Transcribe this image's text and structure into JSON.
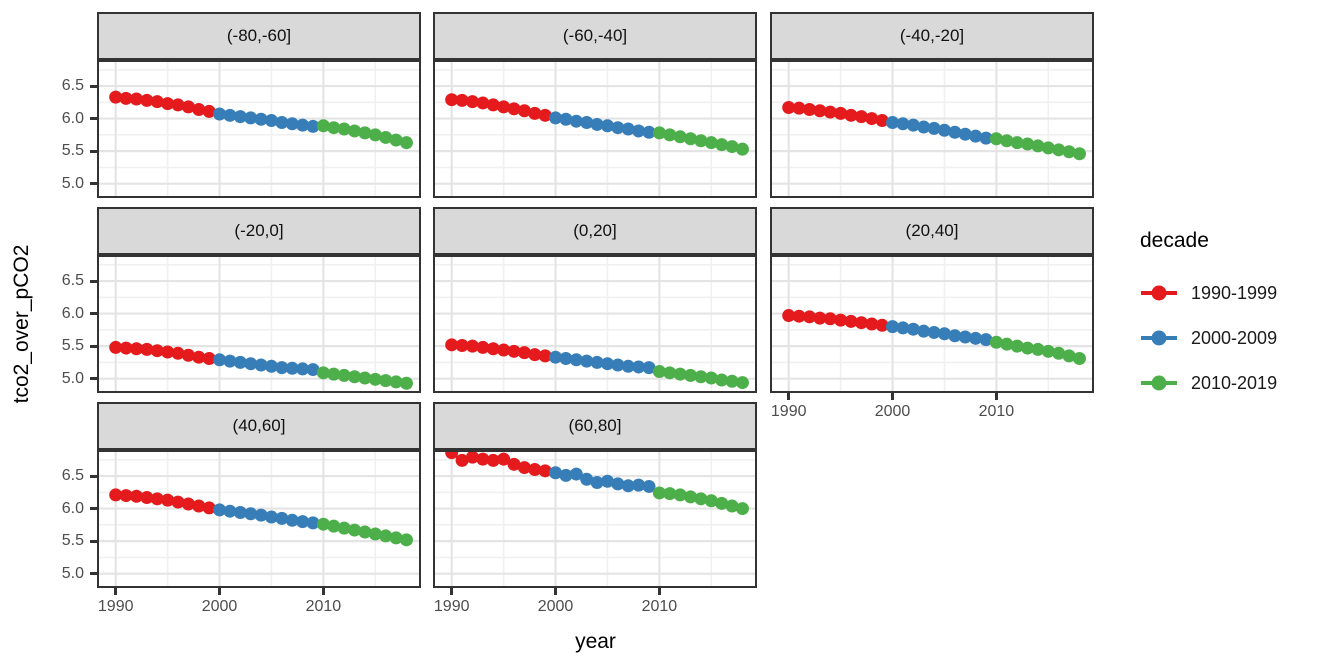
{
  "axes": {
    "x_title": "year",
    "y_title": "tco2_over_pCO2",
    "x_tick_labels": [
      "1990",
      "2000",
      "2010"
    ],
    "y_tick_labels": [
      "6.5",
      "6.0",
      "5.5",
      "5.0"
    ]
  },
  "legend": {
    "title": "decade",
    "entries": [
      {
        "label": "1990-1999",
        "color": "#E41A1C"
      },
      {
        "label": "2000-2009",
        "color": "#377EB8"
      },
      {
        "label": "2010-2019",
        "color": "#4DAF4A"
      }
    ]
  },
  "style_colors": {
    "strip_background": "#D9D9D9",
    "panel_border": "#333333",
    "grid_major": "#E4E4E4",
    "grid_minor": "#F0F0F0",
    "tick_text": "#4D4D4D"
  },
  "chart_data": {
    "type": "scatter",
    "title": "",
    "xlabel": "year",
    "ylabel": "tco2_over_pCO2",
    "xlim": [
      1988.2,
      2019.4
    ],
    "ylim": [
      4.78,
      6.9
    ],
    "x_major_ticks": [
      1990,
      2000,
      2010
    ],
    "x_minor_ticks": [
      1995,
      2005,
      2015
    ],
    "y_major_ticks": [
      6.5,
      6.0,
      5.5,
      5.0
    ],
    "y_minor_ticks": [
      5.25,
      5.75,
      6.25,
      6.75
    ],
    "grid": "major+minor",
    "legend_position": "right",
    "legend_title": "decade",
    "facet_variable": "latitude band",
    "decades": [
      {
        "name": "1990-1999",
        "color": "#E41A1C",
        "years": [
          1990,
          1991,
          1992,
          1993,
          1994,
          1995,
          1996,
          1997,
          1998,
          1999
        ]
      },
      {
        "name": "2000-2009",
        "color": "#377EB8",
        "years": [
          2000,
          2001,
          2002,
          2003,
          2004,
          2005,
          2006,
          2007,
          2008,
          2009
        ]
      },
      {
        "name": "2010-2019",
        "color": "#4DAF4A",
        "years": [
          2010,
          2011,
          2012,
          2013,
          2014,
          2015,
          2016,
          2017,
          2018
        ]
      }
    ],
    "facets": [
      {
        "label": "(-80,-60]",
        "values": [
          [
            6.33,
            6.31,
            6.3,
            6.28,
            6.26,
            6.23,
            6.21,
            6.18,
            6.14,
            6.11
          ],
          [
            6.07,
            6.05,
            6.03,
            6.01,
            5.99,
            5.97,
            5.94,
            5.92,
            5.9,
            5.88
          ],
          [
            5.89,
            5.86,
            5.84,
            5.81,
            5.78,
            5.75,
            5.71,
            5.67,
            5.63
          ]
        ]
      },
      {
        "label": "(-60,-40]",
        "values": [
          [
            6.29,
            6.28,
            6.26,
            6.24,
            6.21,
            6.18,
            6.15,
            6.12,
            6.08,
            6.05
          ],
          [
            6.01,
            5.99,
            5.96,
            5.94,
            5.91,
            5.89,
            5.86,
            5.84,
            5.81,
            5.79
          ],
          [
            5.78,
            5.75,
            5.72,
            5.69,
            5.66,
            5.63,
            5.6,
            5.57,
            5.53
          ]
        ]
      },
      {
        "label": "(-40,-20]",
        "values": [
          [
            6.17,
            6.16,
            6.14,
            6.12,
            6.1,
            6.08,
            6.05,
            6.03,
            6.0,
            5.97
          ],
          [
            5.94,
            5.92,
            5.9,
            5.87,
            5.85,
            5.82,
            5.79,
            5.76,
            5.73,
            5.7
          ],
          [
            5.69,
            5.66,
            5.63,
            5.61,
            5.58,
            5.55,
            5.52,
            5.49,
            5.46
          ]
        ]
      },
      {
        "label": "(-20,0]",
        "values": [
          [
            5.48,
            5.47,
            5.46,
            5.45,
            5.43,
            5.41,
            5.39,
            5.36,
            5.33,
            5.31
          ],
          [
            5.29,
            5.27,
            5.25,
            5.23,
            5.21,
            5.19,
            5.17,
            5.16,
            5.15,
            5.14
          ],
          [
            5.09,
            5.07,
            5.05,
            5.03,
            5.01,
            4.99,
            4.97,
            4.95,
            4.93
          ]
        ]
      },
      {
        "label": "(0,20]",
        "values": [
          [
            5.52,
            5.51,
            5.5,
            5.48,
            5.46,
            5.44,
            5.42,
            5.4,
            5.37,
            5.35
          ],
          [
            5.33,
            5.31,
            5.29,
            5.27,
            5.25,
            5.23,
            5.21,
            5.19,
            5.18,
            5.17
          ],
          [
            5.11,
            5.09,
            5.07,
            5.05,
            5.03,
            5.01,
            4.98,
            4.96,
            4.94
          ]
        ]
      },
      {
        "label": "(20,40]",
        "values": [
          [
            5.97,
            5.96,
            5.95,
            5.93,
            5.92,
            5.9,
            5.88,
            5.86,
            5.84,
            5.82
          ],
          [
            5.8,
            5.78,
            5.76,
            5.73,
            5.71,
            5.69,
            5.66,
            5.64,
            5.62,
            5.6
          ],
          [
            5.56,
            5.53,
            5.5,
            5.47,
            5.45,
            5.42,
            5.39,
            5.35,
            5.31
          ]
        ]
      },
      {
        "label": "(40,60]",
        "values": [
          [
            6.21,
            6.2,
            6.19,
            6.17,
            6.15,
            6.13,
            6.1,
            6.07,
            6.04,
            6.01
          ],
          [
            5.98,
            5.96,
            5.94,
            5.92,
            5.9,
            5.87,
            5.85,
            5.82,
            5.8,
            5.78
          ],
          [
            5.76,
            5.73,
            5.7,
            5.67,
            5.64,
            5.61,
            5.58,
            5.55,
            5.52
          ]
        ]
      },
      {
        "label": "(60,80]",
        "values": [
          [
            6.86,
            6.74,
            6.79,
            6.76,
            6.74,
            6.76,
            6.68,
            6.63,
            6.6,
            6.58
          ],
          [
            6.55,
            6.51,
            6.53,
            6.45,
            6.4,
            6.42,
            6.38,
            6.35,
            6.36,
            6.34
          ],
          [
            6.24,
            6.23,
            6.21,
            6.18,
            6.15,
            6.12,
            6.08,
            6.04,
            6.0
          ]
        ]
      }
    ]
  }
}
